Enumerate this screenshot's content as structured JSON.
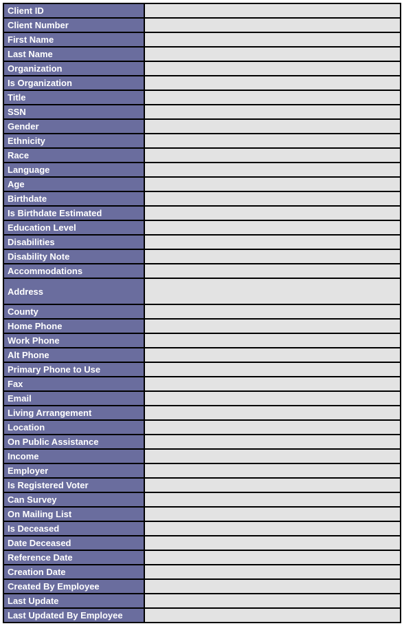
{
  "form": {
    "label_bg": "#6a6d9e",
    "label_text_color": "#ffffff",
    "value_bg": "#e3e3e3",
    "border_color": "#000000",
    "fields": [
      {
        "key": "client_id",
        "label": "Client ID",
        "value": ""
      },
      {
        "key": "client_number",
        "label": "Client Number",
        "value": ""
      },
      {
        "key": "first_name",
        "label": "First Name",
        "value": ""
      },
      {
        "key": "last_name",
        "label": "Last Name",
        "value": ""
      },
      {
        "key": "organization",
        "label": "Organization",
        "value": ""
      },
      {
        "key": "is_organization",
        "label": "Is Organization",
        "value": ""
      },
      {
        "key": "title",
        "label": "Title",
        "value": ""
      },
      {
        "key": "ssn",
        "label": "SSN",
        "value": ""
      },
      {
        "key": "gender",
        "label": "Gender",
        "value": ""
      },
      {
        "key": "ethnicity",
        "label": "Ethnicity",
        "value": ""
      },
      {
        "key": "race",
        "label": "Race",
        "value": ""
      },
      {
        "key": "language",
        "label": "Language",
        "value": ""
      },
      {
        "key": "age",
        "label": "Age",
        "value": ""
      },
      {
        "key": "birthdate",
        "label": "Birthdate",
        "value": ""
      },
      {
        "key": "is_birthdate_estimated",
        "label": "Is Birthdate Estimated",
        "value": ""
      },
      {
        "key": "education_level",
        "label": "Education Level",
        "value": ""
      },
      {
        "key": "disabilities",
        "label": "Disabilities",
        "value": ""
      },
      {
        "key": "disability_note",
        "label": "Disability Note",
        "value": ""
      },
      {
        "key": "accommodations",
        "label": "Accommodations",
        "value": ""
      },
      {
        "key": "address",
        "label": "Address",
        "value": "",
        "tall": true
      },
      {
        "key": "county",
        "label": "County",
        "value": ""
      },
      {
        "key": "home_phone",
        "label": "Home Phone",
        "value": ""
      },
      {
        "key": "work_phone",
        "label": "Work Phone",
        "value": ""
      },
      {
        "key": "alt_phone",
        "label": "Alt Phone",
        "value": ""
      },
      {
        "key": "primary_phone_to_use",
        "label": "Primary Phone to Use",
        "value": ""
      },
      {
        "key": "fax",
        "label": "Fax",
        "value": ""
      },
      {
        "key": "email",
        "label": "Email",
        "value": ""
      },
      {
        "key": "living_arrangement",
        "label": "Living Arrangement",
        "value": ""
      },
      {
        "key": "location",
        "label": "Location",
        "value": ""
      },
      {
        "key": "on_public_assistance",
        "label": "On Public Assistance",
        "value": ""
      },
      {
        "key": "income",
        "label": "Income",
        "value": ""
      },
      {
        "key": "employer",
        "label": "Employer",
        "value": ""
      },
      {
        "key": "is_registered_voter",
        "label": "Is Registered Voter",
        "value": ""
      },
      {
        "key": "can_survey",
        "label": "Can Survey",
        "value": ""
      },
      {
        "key": "on_mailing_list",
        "label": "On Mailing List",
        "value": ""
      },
      {
        "key": "is_deceased",
        "label": "Is Deceased",
        "value": ""
      },
      {
        "key": "date_deceased",
        "label": "Date Deceased",
        "value": ""
      },
      {
        "key": "reference_date",
        "label": "Reference Date",
        "value": ""
      },
      {
        "key": "creation_date",
        "label": "Creation Date",
        "value": ""
      },
      {
        "key": "created_by_employee",
        "label": "Created By Employee",
        "value": ""
      },
      {
        "key": "last_update",
        "label": "Last Update",
        "value": ""
      },
      {
        "key": "last_updated_by_employee",
        "label": "Last Updated By Employee",
        "value": ""
      }
    ]
  }
}
